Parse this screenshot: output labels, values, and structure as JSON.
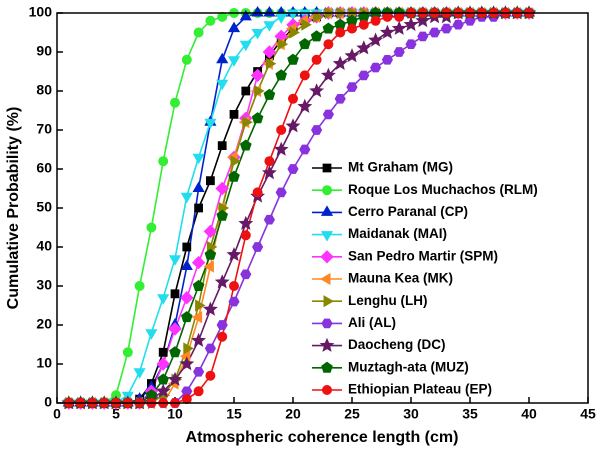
{
  "chart_data": {
    "type": "line",
    "xlabel": "Atmospheric coherence length (cm)",
    "ylabel": "Cumulative Probability (%)",
    "xlim": [
      0,
      45
    ],
    "xticks": [
      0,
      5,
      10,
      15,
      20,
      25,
      30,
      35,
      40,
      45
    ],
    "ylim": [
      0,
      100
    ],
    "yticks": [
      0,
      10,
      20,
      30,
      40,
      50,
      60,
      70,
      80,
      90,
      100
    ],
    "legend": "right",
    "x": [
      1,
      2,
      3,
      4,
      5,
      6,
      7,
      8,
      9,
      10,
      11,
      12,
      13,
      14,
      15,
      16,
      17,
      18,
      19,
      20,
      21,
      22,
      23,
      24,
      25,
      26,
      27,
      28,
      29,
      30,
      31,
      32,
      33,
      34,
      35,
      36,
      37,
      38,
      39,
      40
    ],
    "series": [
      {
        "name": "Mt Graham (MG)",
        "color": "#000000",
        "marker": "square",
        "values": [
          0,
          0,
          0,
          0,
          0,
          0,
          1,
          5,
          13,
          28,
          40,
          50,
          57,
          66,
          74,
          80,
          85,
          89,
          93,
          96,
          98,
          99,
          100,
          100,
          100,
          100,
          100,
          100,
          100,
          100,
          100,
          100,
          100,
          100,
          100,
          100,
          100,
          100,
          100,
          100
        ]
      },
      {
        "name": "Roque Los Muchachos (RLM)",
        "color": "#33ee33",
        "marker": "circle",
        "values": [
          0,
          0,
          0,
          0,
          2,
          13,
          30,
          45,
          62,
          77,
          88,
          95,
          98,
          99,
          100,
          100,
          100,
          100,
          100,
          100,
          100,
          100,
          100,
          100,
          100,
          100,
          100,
          100,
          100,
          100,
          100,
          100,
          100,
          100,
          100,
          100,
          100,
          100,
          100,
          100
        ]
      },
      {
        "name": "Cerro Paranal (CP)",
        "color": "#0022cc",
        "marker": "triangle-up",
        "values": [
          0,
          0,
          0,
          0,
          0,
          0,
          1,
          4,
          10,
          20,
          35,
          55,
          72,
          88,
          96,
          99,
          100,
          100,
          100,
          100,
          100,
          100,
          100,
          100,
          100,
          100,
          100,
          100,
          100,
          100,
          100,
          100,
          100,
          100,
          100,
          100,
          100,
          100,
          100,
          100
        ]
      },
      {
        "name": "Maidanak (MAI)",
        "color": "#22ddee",
        "marker": "triangle-down",
        "values": [
          0,
          0,
          0,
          0,
          0,
          2,
          8,
          18,
          27,
          37,
          53,
          63,
          72,
          82,
          88,
          92,
          95,
          97,
          99,
          100,
          100,
          100,
          100,
          100,
          100,
          100,
          100,
          100,
          100,
          100,
          100,
          100,
          100,
          100,
          100,
          100,
          100,
          100,
          100,
          100
        ]
      },
      {
        "name": "San Pedro Martir (SPM)",
        "color": "#ff33ff",
        "marker": "diamond",
        "values": [
          0,
          0,
          0,
          0,
          0,
          0,
          0,
          3,
          10,
          19,
          27,
          36,
          44,
          55,
          63,
          73,
          84,
          90,
          94,
          97,
          98,
          99,
          100,
          100,
          100,
          100,
          100,
          100,
          100,
          100,
          100,
          100,
          100,
          100,
          100,
          100,
          100,
          100,
          100,
          100
        ]
      },
      {
        "name": "Mauna Kea (MK)",
        "color": "#ff8822",
        "marker": "triangle-left",
        "values": [
          0,
          0,
          0,
          0,
          0,
          0,
          0,
          0,
          0,
          5,
          12,
          22,
          35,
          50,
          63,
          72,
          80,
          87,
          92,
          96,
          98,
          99,
          100,
          100,
          100,
          100,
          100,
          100,
          100,
          100,
          100,
          100,
          100,
          100,
          100,
          100,
          100,
          100,
          100,
          100
        ]
      },
      {
        "name": "Lenghu (LH)",
        "color": "#888800",
        "marker": "triangle-right",
        "values": [
          0,
          0,
          0,
          0,
          0,
          0,
          0,
          0,
          2,
          6,
          14,
          25,
          40,
          50,
          62,
          72,
          80,
          87,
          92,
          95,
          97,
          99,
          100,
          100,
          100,
          100,
          100,
          100,
          100,
          100,
          100,
          100,
          100,
          100,
          100,
          100,
          100,
          100,
          100,
          100
        ]
      },
      {
        "name": "Ali (AL)",
        "color": "#8833dd",
        "marker": "hexagon",
        "values": [
          0,
          0,
          0,
          0,
          0,
          0,
          0,
          0,
          0,
          0,
          3,
          8,
          14,
          20,
          26,
          33,
          40,
          47,
          54,
          60,
          65,
          70,
          74,
          78,
          81,
          84,
          86,
          88,
          90,
          92,
          94,
          95,
          96,
          97,
          98,
          99,
          99,
          100,
          100,
          100
        ]
      },
      {
        "name": "Daocheng (DC)",
        "color": "#661a66",
        "marker": "star",
        "values": [
          0,
          0,
          0,
          0,
          0,
          0,
          0,
          1,
          3,
          6,
          10,
          16,
          24,
          31,
          38,
          46,
          53,
          59,
          65,
          71,
          76,
          80,
          84,
          87,
          89,
          91,
          93,
          95,
          96,
          97,
          98,
          99,
          99,
          100,
          100,
          100,
          100,
          100,
          100,
          100
        ]
      },
      {
        "name": "Muztagh-ata (MUZ)",
        "color": "#006600",
        "marker": "pentagon",
        "values": [
          0,
          0,
          0,
          0,
          0,
          0,
          0,
          2,
          6,
          13,
          22,
          30,
          38,
          48,
          58,
          66,
          73,
          79,
          84,
          88,
          92,
          94,
          96,
          97,
          98,
          99,
          100,
          100,
          100,
          100,
          100,
          100,
          100,
          100,
          100,
          100,
          100,
          100,
          100,
          100
        ]
      },
      {
        "name": "Ethiopian Plateau (EP)",
        "color": "#ee1111",
        "marker": "circle",
        "values": [
          0,
          0,
          0,
          0,
          0,
          0,
          0,
          0,
          0,
          0,
          1,
          3,
          7,
          17,
          30,
          43,
          54,
          62,
          70,
          78,
          84,
          88,
          92,
          95,
          96,
          97,
          98,
          99,
          99,
          100,
          100,
          100,
          100,
          100,
          100,
          100,
          100,
          100,
          100,
          100
        ]
      }
    ]
  }
}
